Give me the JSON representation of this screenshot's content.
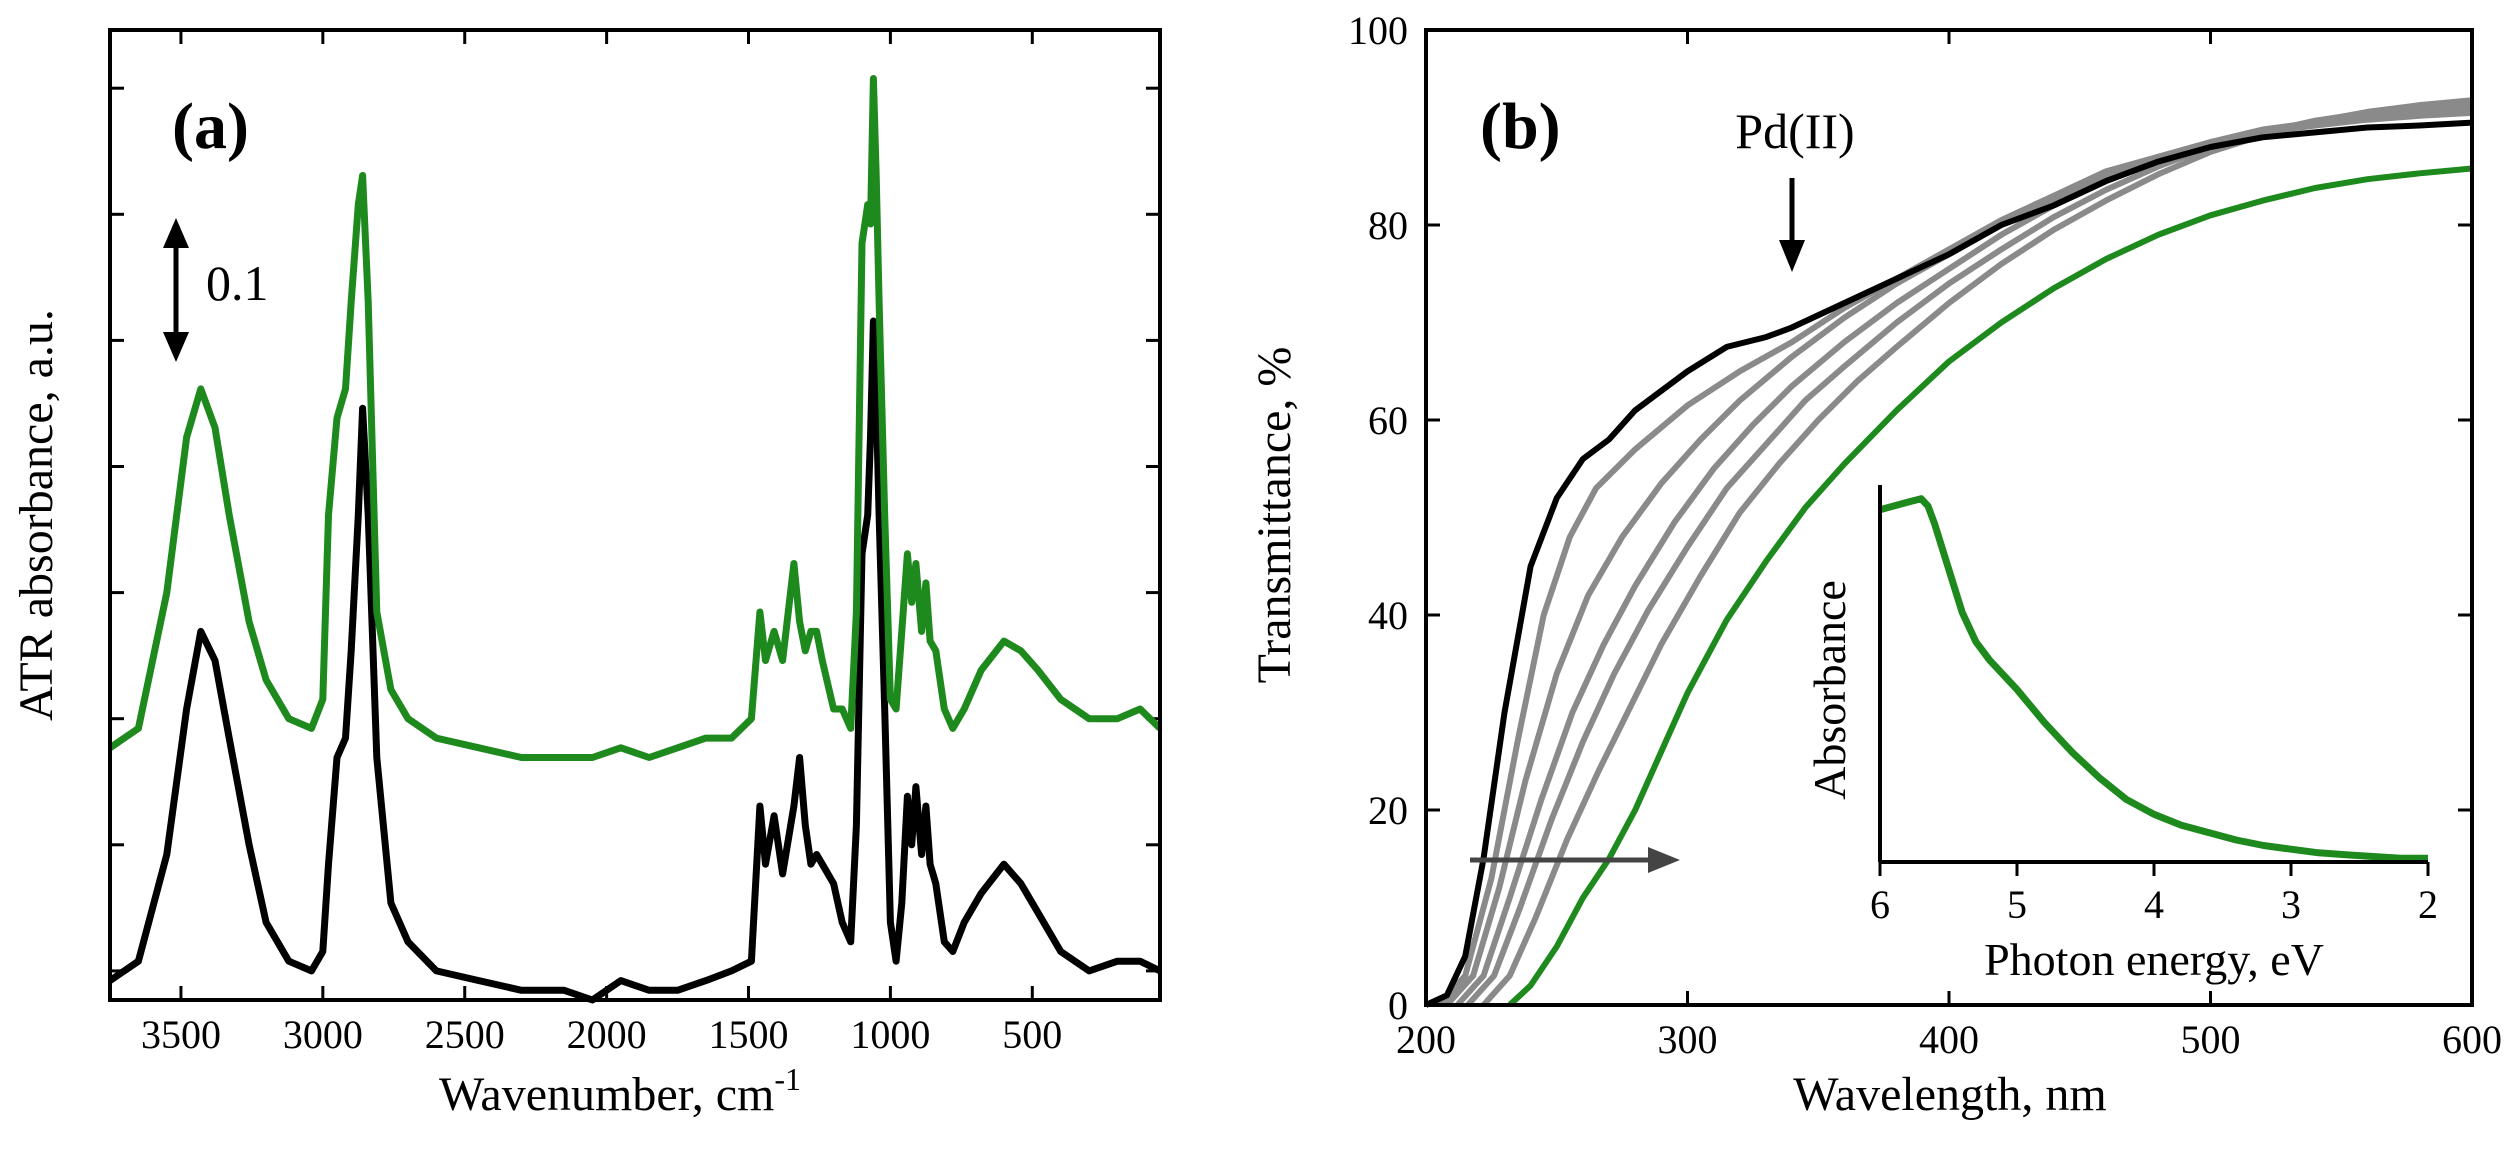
{
  "figure": {
    "colors": {
      "black": "#000000",
      "green": "#1e8a1e",
      "gray": "#8a8a8a",
      "arrow_gray": "#444444"
    }
  },
  "panel_a": {
    "label": "(a)",
    "scale_bar_label": "0.1"
  },
  "panel_b": {
    "label": "(b)",
    "pd_label": "Pd(II)"
  },
  "chart_data": [
    {
      "type": "line",
      "panel": "(a)",
      "title": "",
      "xlabel": "Wavenumber, cm",
      "xlabel_sup": "-1",
      "ylabel": "ATR absorbance, a.u.",
      "xlim": [
        3750,
        50
      ],
      "ylim": [
        0,
        1
      ],
      "xticks": [
        3500,
        3000,
        2500,
        2000,
        1500,
        1000,
        500
      ],
      "xtick_labels": [
        "3500",
        "3000",
        "2500",
        "2000",
        "1500",
        "1000",
        "500"
      ],
      "yticks": [
        0.03,
        0.16,
        0.29,
        0.42,
        0.55,
        0.68,
        0.81,
        0.94
      ],
      "series": [
        {
          "name": "black",
          "color": "#000000",
          "x": [
            3750,
            3650,
            3550,
            3480,
            3430,
            3380,
            3330,
            3260,
            3200,
            3120,
            3040,
            3000,
            2980,
            2950,
            2920,
            2900,
            2875,
            2860,
            2840,
            2810,
            2760,
            2700,
            2600,
            2450,
            2300,
            2150,
            2050,
            1950,
            1850,
            1750,
            1650,
            1560,
            1490,
            1460,
            1440,
            1410,
            1380,
            1340,
            1320,
            1300,
            1280,
            1260,
            1240,
            1200,
            1170,
            1140,
            1120,
            1100,
            1080,
            1070,
            1060,
            1050,
            1040,
            1020,
            1000,
            980,
            960,
            940,
            925,
            910,
            890,
            875,
            860,
            840,
            810,
            780,
            740,
            680,
            600,
            540,
            480,
            400,
            300,
            200,
            120,
            50
          ],
          "y": [
            0.02,
            0.04,
            0.15,
            0.3,
            0.38,
            0.35,
            0.27,
            0.16,
            0.08,
            0.04,
            0.03,
            0.05,
            0.14,
            0.25,
            0.27,
            0.36,
            0.5,
            0.61,
            0.5,
            0.25,
            0.1,
            0.06,
            0.03,
            0.02,
            0.01,
            0.01,
            0.0,
            0.02,
            0.01,
            0.01,
            0.02,
            0.03,
            0.04,
            0.2,
            0.14,
            0.19,
            0.13,
            0.2,
            0.25,
            0.18,
            0.14,
            0.15,
            0.14,
            0.12,
            0.08,
            0.06,
            0.18,
            0.46,
            0.5,
            0.58,
            0.7,
            0.62,
            0.5,
            0.3,
            0.08,
            0.04,
            0.1,
            0.21,
            0.16,
            0.22,
            0.15,
            0.2,
            0.14,
            0.12,
            0.06,
            0.05,
            0.08,
            0.11,
            0.14,
            0.12,
            0.09,
            0.05,
            0.03,
            0.04,
            0.04,
            0.03
          ]
        },
        {
          "name": "green",
          "color": "#1e8a1e",
          "x": [
            3750,
            3650,
            3550,
            3480,
            3430,
            3380,
            3330,
            3260,
            3200,
            3120,
            3040,
            3000,
            2980,
            2950,
            2920,
            2900,
            2875,
            2860,
            2840,
            2810,
            2760,
            2700,
            2600,
            2450,
            2300,
            2150,
            2050,
            1950,
            1850,
            1750,
            1650,
            1560,
            1490,
            1460,
            1440,
            1410,
            1380,
            1340,
            1320,
            1300,
            1280,
            1260,
            1240,
            1200,
            1170,
            1140,
            1120,
            1100,
            1080,
            1070,
            1060,
            1050,
            1040,
            1020,
            1000,
            980,
            960,
            940,
            925,
            910,
            890,
            875,
            860,
            840,
            810,
            780,
            740,
            680,
            600,
            540,
            480,
            400,
            300,
            200,
            120,
            50
          ],
          "y": [
            0.26,
            0.28,
            0.42,
            0.58,
            0.63,
            0.59,
            0.5,
            0.39,
            0.33,
            0.29,
            0.28,
            0.31,
            0.5,
            0.6,
            0.63,
            0.72,
            0.82,
            0.85,
            0.72,
            0.4,
            0.32,
            0.29,
            0.27,
            0.26,
            0.25,
            0.25,
            0.25,
            0.26,
            0.25,
            0.26,
            0.27,
            0.27,
            0.29,
            0.4,
            0.35,
            0.38,
            0.35,
            0.45,
            0.39,
            0.36,
            0.38,
            0.38,
            0.35,
            0.3,
            0.3,
            0.28,
            0.4,
            0.78,
            0.82,
            0.8,
            0.95,
            0.85,
            0.72,
            0.5,
            0.31,
            0.3,
            0.38,
            0.46,
            0.41,
            0.45,
            0.38,
            0.43,
            0.37,
            0.36,
            0.3,
            0.28,
            0.3,
            0.34,
            0.37,
            0.36,
            0.34,
            0.31,
            0.29,
            0.29,
            0.3,
            0.28
          ]
        }
      ],
      "annotations": [
        "(a)",
        "0.1"
      ]
    },
    {
      "type": "line",
      "panel": "(b)",
      "title": "",
      "xlabel": "Wavelength, nm",
      "ylabel": "Transmittance, %",
      "xlim": [
        200,
        600
      ],
      "ylim": [
        0,
        100
      ],
      "xticks": [
        200,
        300,
        400,
        500,
        600
      ],
      "xtick_labels": [
        "200",
        "300",
        "400",
        "500",
        "600"
      ],
      "yticks": [
        0,
        20,
        40,
        60,
        80,
        100
      ],
      "ytick_labels": [
        "0",
        "20",
        "40",
        "60",
        "80",
        "100"
      ],
      "series": [
        {
          "name": "black (start)",
          "color": "#000000",
          "x": [
            200,
            208,
            215,
            222,
            230,
            240,
            250,
            260,
            270,
            280,
            290,
            300,
            315,
            330,
            340,
            360,
            380,
            400,
            420,
            440,
            460,
            480,
            500,
            520,
            540,
            560,
            580,
            600
          ],
          "y": [
            0,
            1,
            5,
            15,
            30,
            45,
            52,
            56,
            58,
            61,
            63,
            65,
            67.5,
            68.5,
            69.5,
            72,
            74.5,
            77,
            80,
            82,
            84.5,
            86.5,
            88,
            89,
            89.5,
            90,
            90.2,
            90.5
          ]
        },
        {
          "name": "intermediate 1",
          "color": "#8a8a8a",
          "x": [
            205,
            215,
            225,
            235,
            245,
            255,
            265,
            280,
            300,
            320,
            340,
            360,
            380,
            400,
            420,
            440,
            460,
            480,
            500,
            520,
            540,
            560,
            580,
            600
          ],
          "y": [
            0,
            3,
            13,
            27,
            40,
            48,
            53,
            57,
            61.5,
            65,
            68,
            71.5,
            74.5,
            77.5,
            80.5,
            83,
            85.5,
            87,
            88.5,
            89.5,
            90.2,
            90.8,
            91.2,
            91.5
          ]
        },
        {
          "name": "intermediate 2",
          "color": "#8a8a8a",
          "x": [
            208,
            218,
            228,
            238,
            250,
            262,
            275,
            290,
            305,
            320,
            340,
            360,
            380,
            400,
            420,
            440,
            460,
            480,
            500,
            520,
            540,
            560,
            580,
            600
          ],
          "y": [
            0,
            3,
            12,
            23,
            34,
            42,
            48,
            53.5,
            58,
            62,
            66.5,
            70.5,
            74,
            77,
            80,
            82.5,
            85,
            87,
            88.5,
            89.8,
            90.5,
            91,
            91.4,
            91.8
          ]
        },
        {
          "name": "intermediate 3",
          "color": "#8a8a8a",
          "x": [
            212,
            222,
            232,
            244,
            256,
            268,
            280,
            295,
            310,
            325,
            340,
            360,
            380,
            400,
            420,
            440,
            460,
            480,
            500,
            520,
            540,
            560,
            580,
            600
          ],
          "y": [
            0,
            3,
            11,
            21,
            30,
            37,
            43,
            49.5,
            55,
            59.5,
            63.5,
            68,
            72,
            75.5,
            79,
            82,
            84.5,
            86.5,
            88.3,
            89.6,
            90.6,
            91.2,
            91.7,
            92.1
          ]
        },
        {
          "name": "intermediate 4",
          "color": "#8a8a8a",
          "x": [
            216,
            226,
            236,
            248,
            260,
            272,
            285,
            300,
            315,
            330,
            345,
            360,
            380,
            400,
            420,
            440,
            460,
            480,
            500,
            520,
            540,
            560,
            580,
            600
          ],
          "y": [
            0,
            3,
            10,
            19,
            27,
            34,
            40.5,
            47,
            53,
            57.5,
            62,
            65.5,
            70,
            74,
            77.5,
            80.8,
            83.6,
            86,
            88,
            89.5,
            90.7,
            91.5,
            92,
            92.5
          ]
        },
        {
          "name": "intermediate 5",
          "color": "#8a8a8a",
          "x": [
            222,
            232,
            242,
            254,
            266,
            278,
            290,
            305,
            320,
            335,
            350,
            365,
            380,
            400,
            420,
            440,
            460,
            480,
            500,
            520,
            540,
            560,
            580,
            600
          ],
          "y": [
            0,
            3,
            9,
            17,
            24,
            30.5,
            37,
            44,
            50.5,
            55.5,
            60,
            64,
            67.5,
            72,
            76,
            79.5,
            82.5,
            85.2,
            87.5,
            89.2,
            90.6,
            91.6,
            92.3,
            92.8
          ]
        },
        {
          "name": "green (end)",
          "color": "#1e8a1e",
          "x": [
            232,
            240,
            250,
            260,
            270,
            280,
            290,
            300,
            315,
            330,
            345,
            360,
            380,
            400,
            420,
            440,
            460,
            480,
            500,
            520,
            540,
            560,
            580,
            600
          ],
          "y": [
            0,
            2,
            6,
            11,
            15,
            20,
            26,
            32,
            39.5,
            45.5,
            51,
            55.5,
            61,
            66,
            70,
            73.5,
            76.5,
            79,
            81,
            82.5,
            83.8,
            84.7,
            85.3,
            85.8
          ]
        }
      ],
      "annotations": [
        "(b)",
        "Pd(II)"
      ],
      "inset": {
        "type": "line",
        "xlabel": "Photon energy, eV",
        "ylabel": "Absorbance",
        "xlim": [
          6,
          2
        ],
        "ylim": [
          0,
          1
        ],
        "xticks": [
          6,
          5,
          4,
          3,
          2
        ],
        "xtick_labels": [
          "6",
          "5",
          "4",
          "3",
          "2"
        ],
        "series": [
          {
            "name": "green",
            "color": "#1e8a1e",
            "x": [
              6.0,
              5.9,
              5.8,
              5.7,
              5.65,
              5.6,
              5.5,
              5.4,
              5.3,
              5.2,
              5.0,
              4.8,
              4.6,
              4.4,
              4.2,
              4.0,
              3.8,
              3.6,
              3.4,
              3.2,
              3.0,
              2.8,
              2.6,
              2.4,
              2.2,
              2.0
            ],
            "y": [
              0.96,
              0.97,
              0.98,
              0.99,
              0.97,
              0.92,
              0.8,
              0.68,
              0.6,
              0.55,
              0.47,
              0.38,
              0.3,
              0.23,
              0.17,
              0.13,
              0.1,
              0.08,
              0.06,
              0.045,
              0.035,
              0.025,
              0.02,
              0.015,
              0.01,
              0.01
            ]
          }
        ]
      }
    }
  ]
}
